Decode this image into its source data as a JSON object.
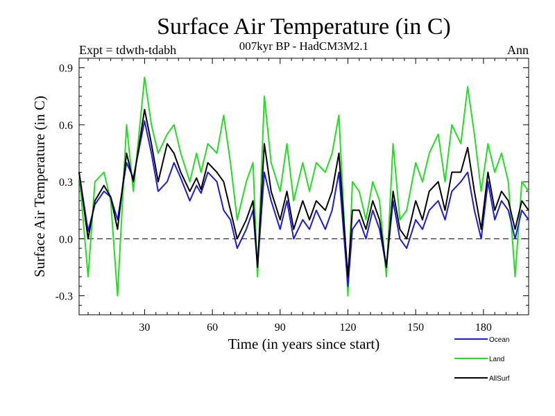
{
  "chart_data": {
    "type": "line",
    "title": "Surface Air Temperature (in C)",
    "subtitle": "007kyr BP - HadCM3M2.1",
    "left_label": "Expt = tdwth-tdabh",
    "right_label": "Ann",
    "xlabel": "Time (in years since start)",
    "ylabel": "Surface Air Temperature (in C)",
    "xlim": [
      1,
      200
    ],
    "ylim": [
      -0.4,
      0.95
    ],
    "xticks": [
      30,
      60,
      90,
      120,
      150,
      180
    ],
    "xtick_labels": [
      "30",
      "60",
      "90",
      "120",
      "150",
      "180"
    ],
    "yticks": [
      -0.3,
      0.0,
      0.3,
      0.6,
      0.9
    ],
    "ytick_labels": [
      "-0.3",
      "0.0",
      "0.3",
      "0.6",
      "0.9"
    ],
    "reference_line": 0.0,
    "legend_position": "bottom-right",
    "series": [
      {
        "name": "Ocean",
        "color": "#1a1adc",
        "x": [
          1,
          5,
          8,
          12,
          15,
          18,
          22,
          25,
          30,
          33,
          36,
          40,
          43,
          46,
          50,
          53,
          55,
          58,
          62,
          65,
          68,
          71,
          75,
          78,
          80,
          83,
          86,
          90,
          93,
          96,
          100,
          103,
          106,
          110,
          113,
          116,
          120,
          122,
          125,
          128,
          131,
          134,
          137,
          140,
          143,
          146,
          150,
          153,
          156,
          160,
          163,
          166,
          170,
          173,
          176,
          179,
          182,
          185,
          188,
          191,
          194,
          197,
          200
        ],
        "values": [
          0.35,
          0.04,
          0.18,
          0.25,
          0.22,
          0.1,
          0.4,
          0.32,
          0.62,
          0.45,
          0.25,
          0.3,
          0.4,
          0.32,
          0.2,
          0.28,
          0.24,
          0.35,
          0.3,
          0.15,
          0.1,
          -0.05,
          0.05,
          0.15,
          -0.15,
          0.35,
          0.2,
          0.05,
          0.2,
          0.0,
          0.1,
          0.05,
          0.15,
          0.05,
          0.15,
          0.35,
          -0.25,
          0.05,
          0.1,
          0.0,
          0.15,
          0.05,
          -0.15,
          0.2,
          0.0,
          -0.05,
          0.1,
          0.05,
          0.15,
          0.2,
          0.1,
          0.25,
          0.3,
          0.35,
          0.15,
          0.0,
          0.3,
          0.1,
          0.2,
          0.15,
          0.0,
          0.15,
          0.1
        ]
      },
      {
        "name": "Land",
        "color": "#22dd22",
        "x": [
          1,
          5,
          8,
          12,
          15,
          18,
          22,
          25,
          30,
          33,
          36,
          40,
          43,
          46,
          50,
          53,
          55,
          58,
          62,
          65,
          68,
          71,
          75,
          78,
          80,
          83,
          86,
          90,
          93,
          96,
          100,
          103,
          106,
          110,
          113,
          116,
          120,
          122,
          125,
          128,
          131,
          134,
          137,
          140,
          143,
          146,
          150,
          153,
          156,
          160,
          163,
          166,
          170,
          173,
          176,
          179,
          182,
          185,
          188,
          191,
          194,
          197,
          200
        ],
        "values": [
          0.35,
          -0.2,
          0.3,
          0.35,
          0.2,
          -0.3,
          0.6,
          0.25,
          0.85,
          0.6,
          0.45,
          0.55,
          0.6,
          0.45,
          0.3,
          0.45,
          0.35,
          0.5,
          0.45,
          0.65,
          0.4,
          0.1,
          0.3,
          0.4,
          -0.2,
          0.75,
          0.4,
          0.25,
          0.5,
          0.2,
          0.4,
          0.25,
          0.4,
          0.35,
          0.45,
          0.65,
          -0.3,
          0.3,
          0.25,
          0.1,
          0.3,
          0.2,
          -0.2,
          0.5,
          0.1,
          0.15,
          0.4,
          0.3,
          0.45,
          0.55,
          0.3,
          0.6,
          0.5,
          0.8,
          0.55,
          0.25,
          0.5,
          0.35,
          0.45,
          0.3,
          -0.2,
          0.3,
          0.25
        ]
      },
      {
        "name": "AllSurf",
        "color": "#000000",
        "x": [
          1,
          5,
          8,
          12,
          15,
          18,
          22,
          25,
          30,
          33,
          36,
          40,
          43,
          46,
          50,
          53,
          55,
          58,
          62,
          65,
          68,
          71,
          75,
          78,
          80,
          83,
          86,
          90,
          93,
          96,
          100,
          103,
          106,
          110,
          113,
          116,
          120,
          122,
          125,
          128,
          131,
          134,
          137,
          140,
          143,
          146,
          150,
          153,
          156,
          160,
          163,
          166,
          170,
          173,
          176,
          179,
          182,
          185,
          188,
          191,
          194,
          197,
          200
        ],
        "values": [
          0.35,
          0.0,
          0.2,
          0.28,
          0.22,
          0.05,
          0.45,
          0.3,
          0.68,
          0.5,
          0.3,
          0.5,
          0.45,
          0.35,
          0.25,
          0.32,
          0.26,
          0.4,
          0.35,
          0.3,
          0.15,
          0.0,
          0.1,
          0.2,
          -0.15,
          0.5,
          0.25,
          0.1,
          0.25,
          0.05,
          0.2,
          0.1,
          0.2,
          0.15,
          0.25,
          0.45,
          -0.2,
          0.15,
          0.15,
          0.05,
          0.2,
          0.1,
          -0.15,
          0.25,
          0.05,
          0.0,
          0.2,
          0.1,
          0.25,
          0.3,
          0.15,
          0.35,
          0.35,
          0.48,
          0.25,
          0.05,
          0.35,
          0.15,
          0.25,
          0.2,
          0.05,
          0.2,
          0.15
        ]
      }
    ]
  }
}
